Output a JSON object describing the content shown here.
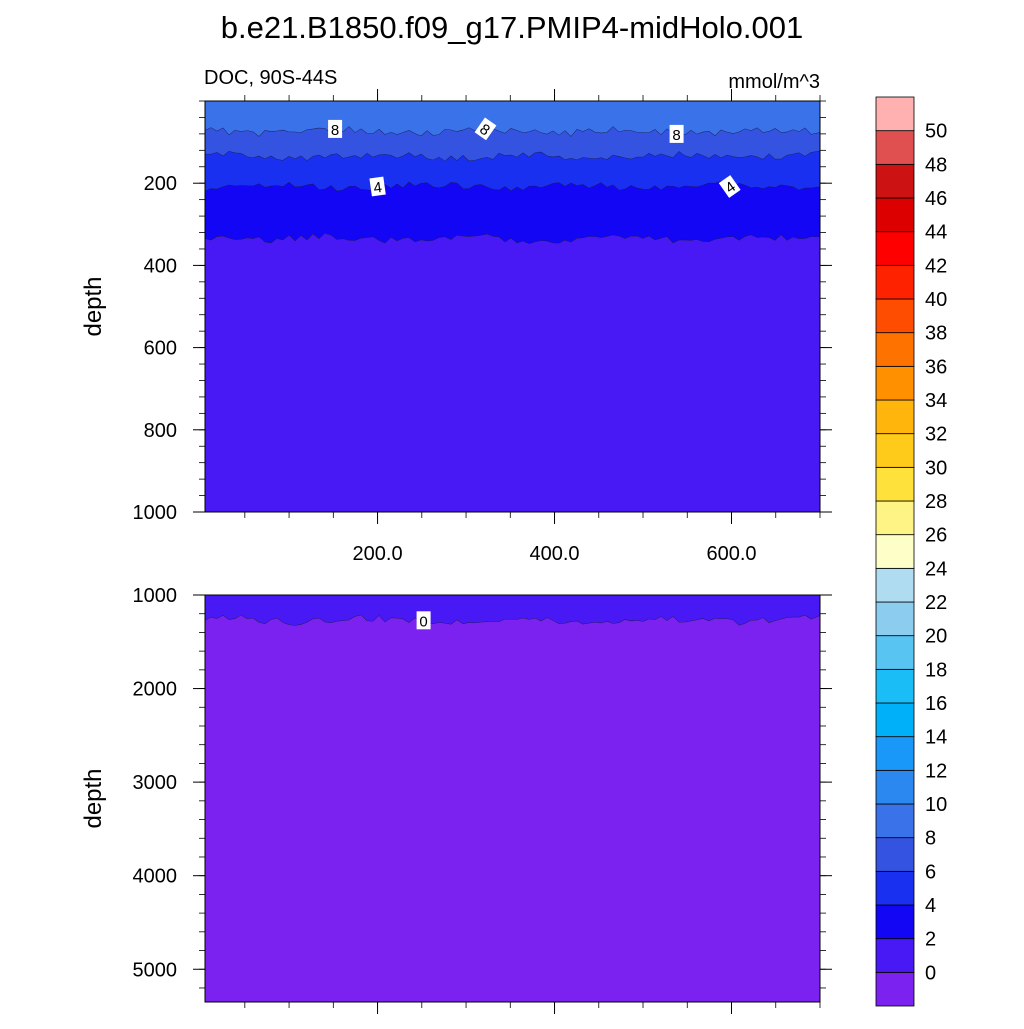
{
  "title": "b.e21.B1850.f09_g17.PMIP4-midHolo.001",
  "chart_data": {
    "type": "contour",
    "variable": "DOC, 90S-44S",
    "units": "mmol/m^3",
    "colorbar": {
      "levels": [
        0,
        2,
        4,
        6,
        8,
        10,
        12,
        14,
        16,
        18,
        20,
        22,
        24,
        26,
        28,
        30,
        32,
        34,
        36,
        38,
        40,
        42,
        44,
        46,
        48,
        50
      ],
      "colors": [
        "#7b22f0",
        "#4819f5",
        "#1306f5",
        "#1a30f0",
        "#3353e0",
        "#3a72ea",
        "#2b88f0",
        "#1a98fa",
        "#00b0f8",
        "#1bbdf6",
        "#58c4f2",
        "#8cccee",
        "#b0dcf2",
        "#fefec8",
        "#fef486",
        "#fee13b",
        "#fecb1a",
        "#ffb50b",
        "#ff9100",
        "#fe7200",
        "#fe4d00",
        "#fe2200",
        "#ff0000",
        "#dc0000",
        "#cc1212",
        "#e05050",
        "#ffb0b0"
      ]
    },
    "panels": [
      {
        "name": "upper",
        "ylabel": "depth",
        "ylim": [
          0,
          1000
        ],
        "yticks": [
          200,
          400,
          600,
          800,
          1000
        ],
        "xticks": [
          200.0,
          400.0,
          600.0
        ],
        "xtick_labels": [
          "200.0",
          "400.0",
          "600.0"
        ],
        "xlim": [
          5,
          700
        ],
        "bands": [
          {
            "level": "8-10",
            "top": 0,
            "bottom": 75
          },
          {
            "level": "6-8",
            "top": 75,
            "bottom": 135
          },
          {
            "level": "4-6",
            "top": 135,
            "bottom": 208
          },
          {
            "level": "2-4",
            "top": 208,
            "bottom": 335
          },
          {
            "level": "0-2",
            "top": 335,
            "bottom": 1000
          }
        ],
        "contour_labels": [
          {
            "text": "8",
            "x": 152,
            "depth": 68
          },
          {
            "text": "8",
            "x": 322,
            "depth": 68
          },
          {
            "text": "8",
            "x": 538,
            "depth": 80
          },
          {
            "text": "4",
            "x": 200,
            "depth": 208
          },
          {
            "text": "4",
            "x": 598,
            "depth": 208
          }
        ]
      },
      {
        "name": "lower",
        "ylabel": "depth",
        "ylim": [
          1000,
          5350
        ],
        "yticks": [
          1000,
          2000,
          3000,
          4000,
          5000
        ],
        "xlim": [
          5,
          700
        ],
        "bands": [
          {
            "level": "0-2",
            "top": 1000,
            "bottom": 1270
          },
          {
            "level": "<0",
            "top": 1270,
            "bottom": 5350
          }
        ],
        "contour_labels": [
          {
            "text": "0",
            "x": 252,
            "depth": 1270
          }
        ]
      }
    ]
  }
}
